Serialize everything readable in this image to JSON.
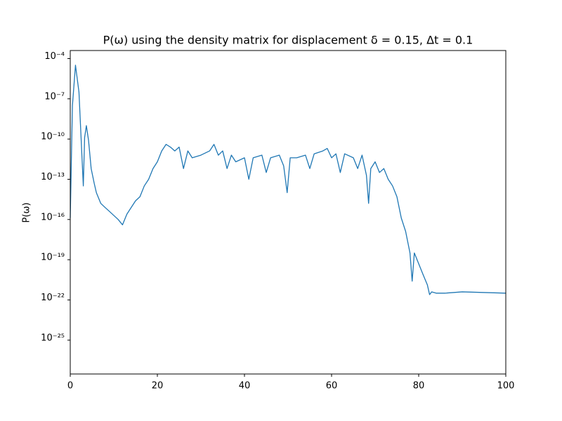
{
  "chart_data": {
    "type": "line",
    "title": "P(ω) using the density matrix for displacement δ = 0.15, Δt = 0.1",
    "y_label": "P(ω)",
    "color": "#1f77b4",
    "log_y": true,
    "x": [
      0,
      0.5,
      1.2,
      2,
      2.7,
      3,
      3.3,
      3.7,
      4.2,
      4.8,
      5.5,
      6,
      7,
      8,
      9,
      10,
      11,
      12,
      13,
      14,
      15,
      16,
      17,
      18,
      19,
      20,
      21,
      22,
      23,
      24,
      25,
      26,
      27,
      28,
      30,
      32,
      33,
      34,
      35,
      36,
      37,
      38,
      40,
      41,
      42,
      44,
      45,
      46,
      48,
      49,
      49.8,
      50.5,
      52,
      54,
      55,
      56,
      58,
      59,
      60,
      61,
      62,
      63,
      65,
      66,
      67,
      68,
      68.5,
      69,
      70,
      71,
      72,
      73,
      74,
      75,
      76,
      77,
      78,
      78.5,
      79,
      80,
      81,
      82,
      82.5,
      83,
      84,
      86,
      90,
      100
    ],
    "values": [
      1.3e-16,
      3.2e-08,
      3.2e-05,
      3.2e-07,
      4e-12,
      3.2e-14,
      1.3e-10,
      1e-09,
      7.9e-11,
      6.3e-13,
      5e-14,
      1e-14,
      1.6e-15,
      7.9e-16,
      4e-16,
      2e-16,
      1e-16,
      4e-17,
      2.5e-16,
      7.9e-16,
      2.5e-15,
      5e-15,
      3.2e-14,
      1e-13,
      6.3e-13,
      2e-12,
      1.3e-11,
      4e-11,
      2.5e-11,
      1.3e-11,
      2.5e-11,
      6.3e-13,
      1.3e-11,
      4e-12,
      6.3e-12,
      1.3e-11,
      4e-11,
      6.3e-12,
      1.3e-11,
      6.3e-13,
      6.3e-12,
      2e-12,
      4e-12,
      1e-13,
      4e-12,
      6.3e-12,
      3.2e-13,
      4e-12,
      6.3e-12,
      1e-12,
      1e-14,
      4e-12,
      4e-12,
      6.3e-12,
      6.3e-13,
      7.9e-12,
      1.3e-11,
      2e-11,
      4e-12,
      7.9e-12,
      3.2e-13,
      7.9e-12,
      4e-12,
      6.3e-13,
      6.3e-12,
      2e-13,
      1.6e-15,
      6.3e-13,
      2e-12,
      3.2e-13,
      6.3e-13,
      1e-13,
      3.2e-14,
      5e-15,
      1.3e-16,
      1.3e-17,
      3.2e-19,
      2.5e-21,
      3.2e-19,
      5e-20,
      7.9e-21,
      1.3e-21,
      2.5e-22,
      4e-22,
      3.2e-22,
      3.2e-22,
      4e-22,
      3.2e-22
    ],
    "xlim": [
      0,
      100
    ],
    "xticks": [
      0,
      20,
      40,
      60,
      80,
      100
    ],
    "ylim": [
      0.0004,
      3e-28
    ],
    "yticks": [
      {
        "value": 0.0001,
        "label": "10⁻⁴"
      },
      {
        "value": 1e-07,
        "label": "10⁻⁷"
      },
      {
        "value": 1e-10,
        "label": "10⁻¹⁰"
      },
      {
        "value": 1e-13,
        "label": "10⁻¹³"
      },
      {
        "value": 1e-16,
        "label": "10⁻¹⁶"
      },
      {
        "value": 1e-19,
        "label": "10⁻¹⁹"
      },
      {
        "value": 1e-22,
        "label": "10⁻²²"
      },
      {
        "value": 1e-25,
        "label": "10⁻²⁵"
      }
    ]
  }
}
